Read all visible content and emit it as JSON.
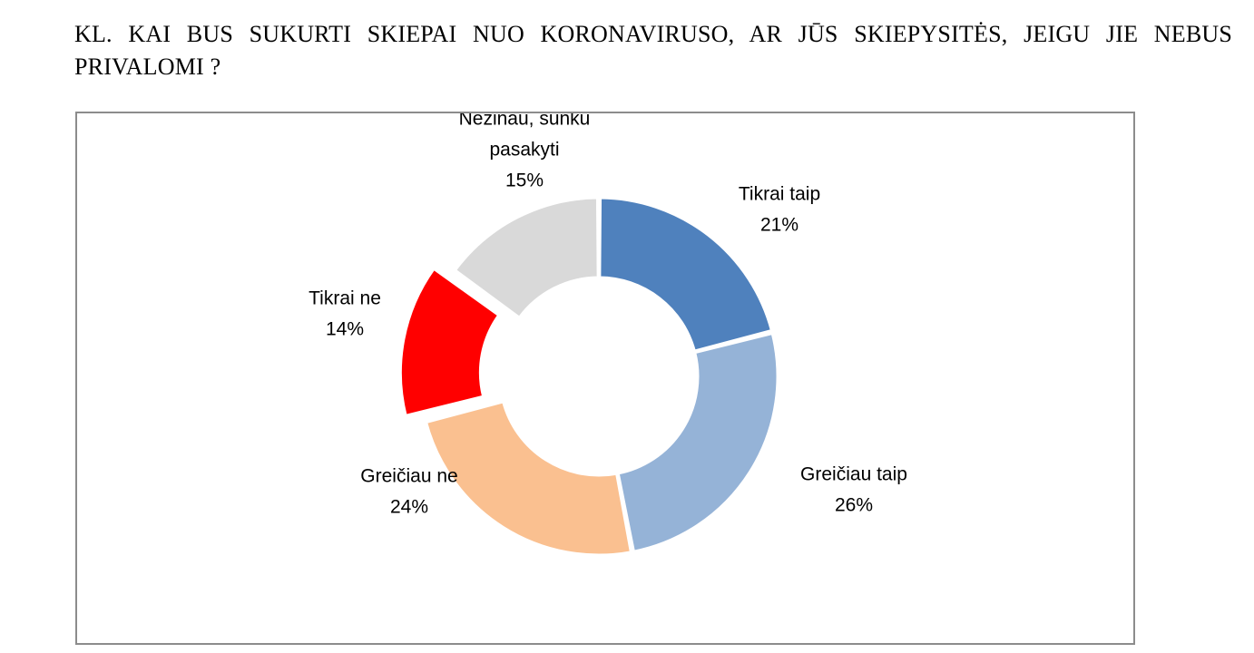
{
  "question": {
    "text": "KL. KAI BUS SUKURTI SKIEPAI NUO KORONAVIRUSO, AR JŪS SKIEPYSITĖS, JEIGU JIE NEBUS PRIVALOMI ?"
  },
  "chart_data": {
    "type": "pie",
    "variant": "donut",
    "slices": [
      {
        "label_lines": [
          "Tikrai taip"
        ],
        "value_label": "21%",
        "value": 21,
        "color": "#4f81bd",
        "exploded": false
      },
      {
        "label_lines": [
          "Greičiau taip"
        ],
        "value_label": "26%",
        "value": 26,
        "color": "#95b3d7",
        "exploded": false
      },
      {
        "label_lines": [
          "Greičiau ne"
        ],
        "value_label": "24%",
        "value": 24,
        "color": "#fac090",
        "exploded": false
      },
      {
        "label_lines": [
          "Tikrai ne"
        ],
        "value_label": "14%",
        "value": 14,
        "color": "#ff0000",
        "exploded": true
      },
      {
        "label_lines": [
          "Nežinau, sunku",
          "pasakyti"
        ],
        "value_label": "15%",
        "value": 15,
        "color": "#d9d9d9",
        "exploded": false
      }
    ],
    "start": "top",
    "direction": "clockwise",
    "legend": "none",
    "data_labels": "outside"
  }
}
